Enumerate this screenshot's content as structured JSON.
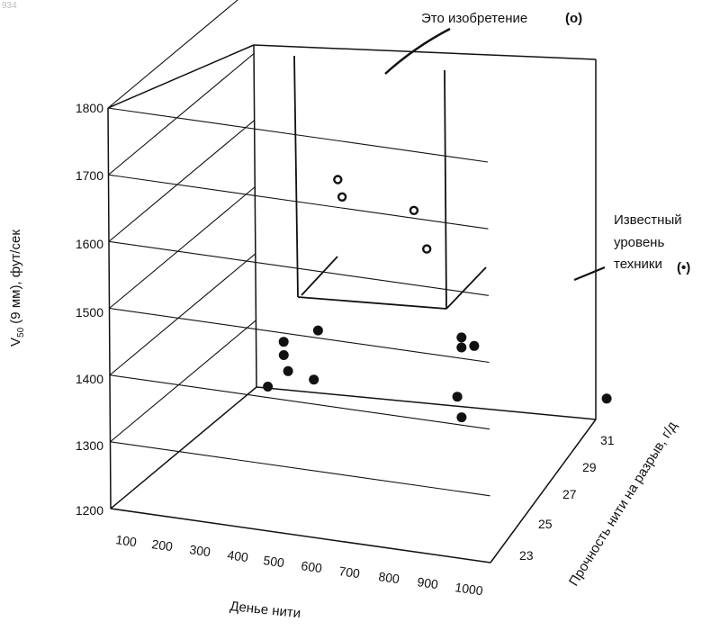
{
  "page_number": "934",
  "chart_data": {
    "type": "scatter",
    "projection": "3d",
    "title": "",
    "xlabel": "Денье нити",
    "ylabel": "V50 (9 мм), фут/сек",
    "ylabel_main": "V",
    "ylabel_sub": "50",
    "ylabel_rest": " (9 мм), фут/сек",
    "zlabel": "Прочность нити на разрыв, г/д",
    "x_ticks": [
      "100",
      "200",
      "300",
      "400",
      "500",
      "600",
      "700",
      "800",
      "900",
      "1000"
    ],
    "y_ticks": [
      "1200",
      "1300",
      "1400",
      "1500",
      "1600",
      "1700",
      "1800"
    ],
    "z_ticks": [
      "23",
      "25",
      "27",
      "29",
      "31"
    ],
    "xlim": [
      100,
      1000
    ],
    "ylim": [
      1200,
      1800
    ],
    "zlim": [
      22,
      32
    ],
    "grid": true,
    "series": [
      {
        "name": "Это изобретение",
        "marker": "open-circle",
        "points": [
          {
            "x": 470,
            "z": 27,
            "y": 1635
          },
          {
            "x": 480,
            "z": 27,
            "y": 1610
          },
          {
            "x": 650,
            "z": 27,
            "y": 1605
          },
          {
            "x": 680,
            "z": 27,
            "y": 1550
          }
        ]
      },
      {
        "name": "Известный уровень техники",
        "marker": "filled-circle",
        "points": [
          {
            "x": 200,
            "z": 23,
            "y": 1295
          },
          {
            "x": 200,
            "z": 23,
            "y": 1275
          },
          {
            "x": 210,
            "z": 23,
            "y": 1252
          },
          {
            "x": 440,
            "z": 31,
            "y": 1395
          },
          {
            "x": 410,
            "z": 27,
            "y": 1330
          },
          {
            "x": 560,
            "z": 31,
            "y": 1490
          },
          {
            "x": 750,
            "z": 27,
            "y": 1335
          },
          {
            "x": 760,
            "z": 27,
            "y": 1305
          },
          {
            "x": 900,
            "z": 31,
            "y": 1510
          },
          {
            "x": 900,
            "z": 31,
            "y": 1495
          },
          {
            "x": 930,
            "z": 31,
            "y": 1500
          },
          {
            "x": 1000,
            "z": 24,
            "y": 1300
          }
        ]
      }
    ],
    "annotations": {
      "invention": {
        "text": "Это изобретение",
        "symbol": "(o)"
      },
      "prior_art": {
        "lines": [
          "Известный",
          "уровень",
          "техники"
        ],
        "symbol": "(•)"
      }
    }
  }
}
